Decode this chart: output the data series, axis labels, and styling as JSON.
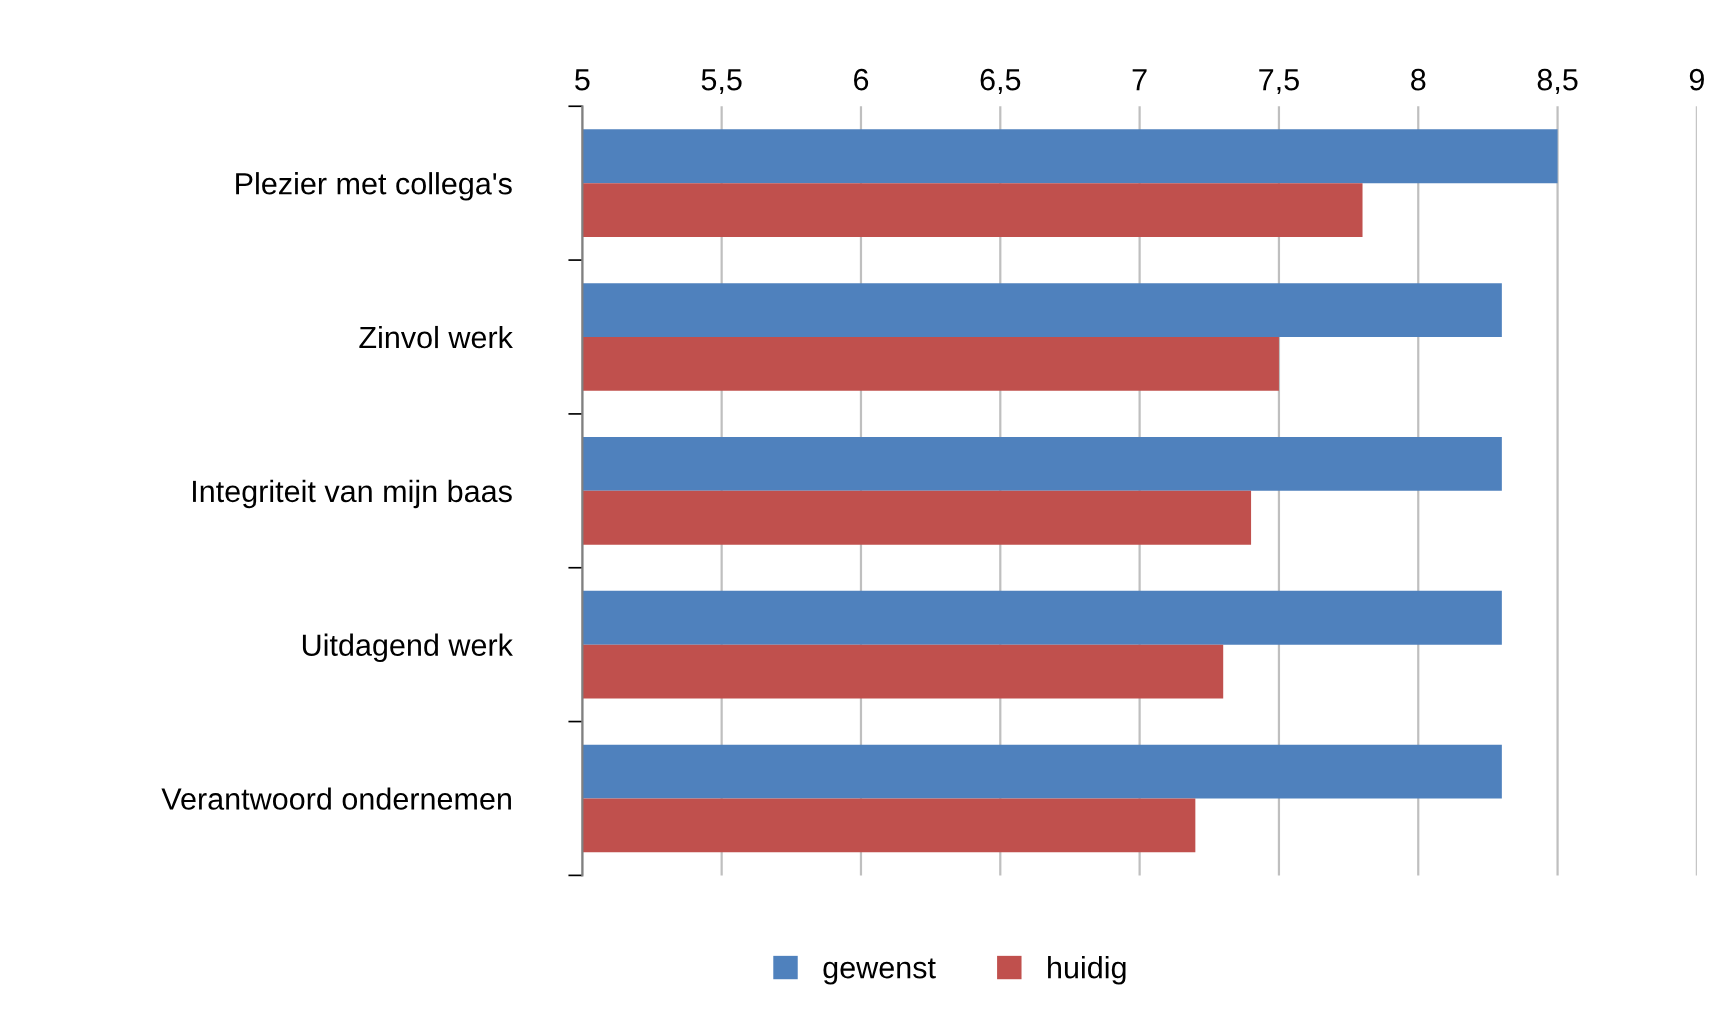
{
  "chart_data": {
    "type": "bar",
    "orientation": "horizontal",
    "categories": [
      "Plezier met collega's",
      "Zinvol werk",
      "Integriteit van mijn baas",
      "Uitdagend werk",
      "Verantwoord ondernemen"
    ],
    "series": [
      {
        "name": "gewenst",
        "color": "#4f81bd",
        "values": [
          8.5,
          8.3,
          8.3,
          8.3,
          8.3
        ]
      },
      {
        "name": "huidig",
        "color": "#c0504d",
        "values": [
          7.8,
          7.5,
          7.4,
          7.3,
          7.2
        ]
      }
    ],
    "xlim": [
      5,
      9
    ],
    "xticks": [
      5,
      {
        "value": 5.5,
        "label": "5,5"
      },
      6,
      {
        "value": 6.5,
        "label": "6,5"
      },
      7,
      {
        "value": 7.5,
        "label": "7,5"
      },
      8,
      {
        "value": 8.5,
        "label": "8,5"
      },
      9
    ],
    "grid": "x",
    "legend": "bottom"
  }
}
